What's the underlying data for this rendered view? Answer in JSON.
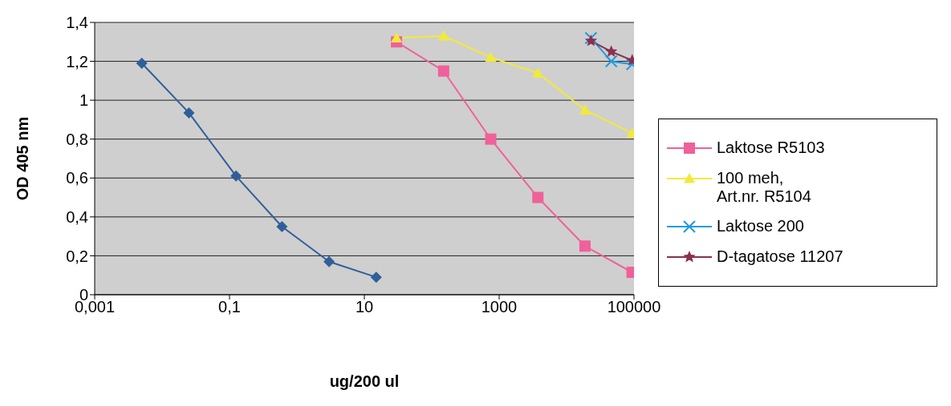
{
  "chart_data": {
    "type": "line",
    "xlabel": "ug/200 ul",
    "ylabel": "OD 405 nm",
    "log": "x",
    "xlim": [
      0.001,
      100000
    ],
    "xticks": [
      {
        "value": 0.001,
        "label": "0,001"
      },
      {
        "value": 0.1,
        "label": "0,1"
      },
      10,
      1000,
      100000
    ],
    "ylim": [
      0,
      1.4
    ],
    "yticks": [
      0,
      {
        "value": 0.2,
        "label": "0,2"
      },
      {
        "value": 0.4,
        "label": "0,4"
      },
      {
        "value": 0.6,
        "label": "0,6"
      },
      {
        "value": 0.8,
        "label": "0,8"
      },
      1,
      {
        "value": 1.2,
        "label": "1,2"
      },
      {
        "value": 1.4,
        "label": "1,4"
      }
    ],
    "grid": "y",
    "legend": "right",
    "series": [
      {
        "color": "#2f5f9a",
        "marker": "diamond",
        "x": [
          0.005,
          0.025,
          0.125,
          0.6,
          3,
          15
        ],
        "values": [
          1.19,
          0.935,
          0.61,
          0.35,
          0.17,
          0.09
        ]
      },
      {
        "name": "Laktose R5103",
        "color": "#f0609a",
        "marker": "square",
        "x": [
          30,
          150,
          750,
          3750,
          18750,
          93750
        ],
        "values": [
          1.3,
          1.15,
          0.8,
          0.5,
          0.25,
          0.115
        ]
      },
      {
        "name": "100 meh,\nArt.nr. R5104",
        "color": "#f2ea3a",
        "marker": "triangle",
        "x": [
          30,
          150,
          750,
          3750,
          18750,
          93750
        ],
        "values": [
          1.32,
          1.33,
          1.22,
          1.14,
          0.95,
          0.83
        ]
      },
      {
        "name": "Laktose 200",
        "color": "#1e9be0",
        "marker": "cross",
        "x": [
          23000,
          46000,
          94000
        ],
        "values": [
          1.32,
          1.2,
          1.185
        ]
      },
      {
        "name": "D-tagatose 11207",
        "color": "#8a3050",
        "marker": "star",
        "x": [
          23000,
          46000,
          94000
        ],
        "values": [
          1.305,
          1.25,
          1.205
        ]
      }
    ]
  }
}
